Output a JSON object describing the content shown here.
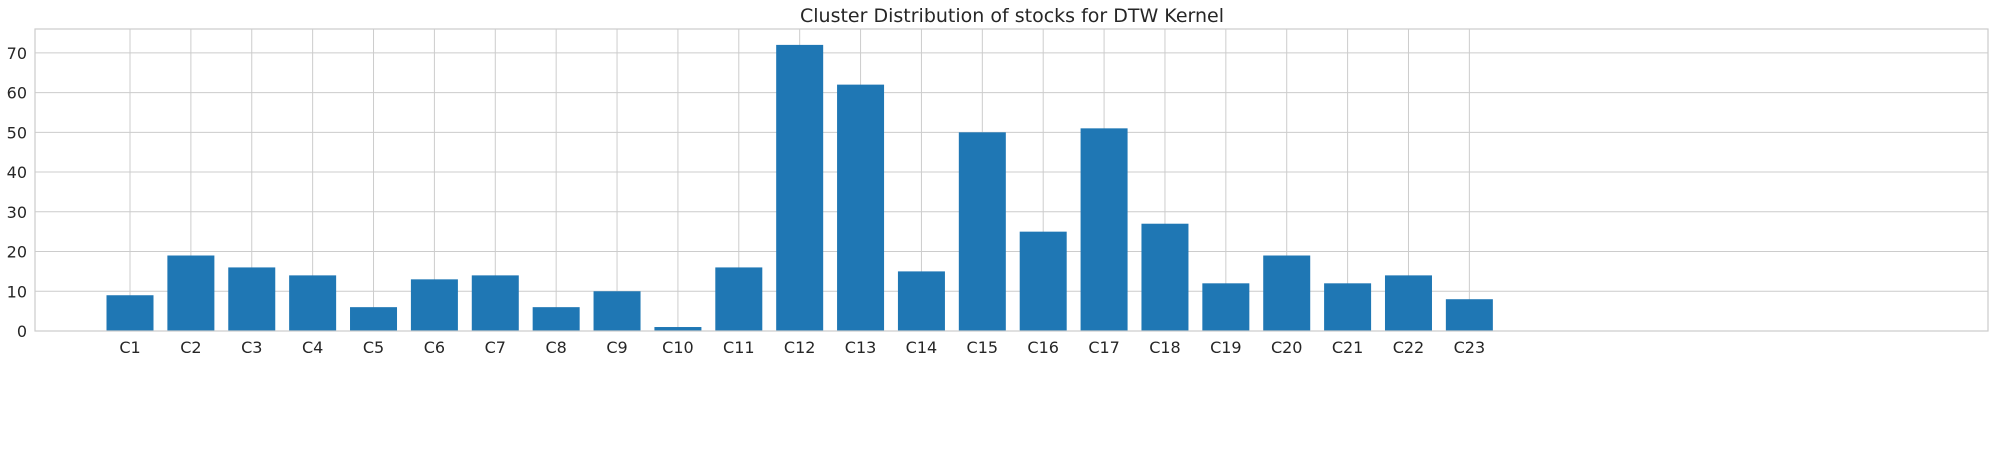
{
  "chart_data": {
    "type": "bar",
    "title": "Cluster Distribution of stocks for DTW Kernel",
    "xlabel": "",
    "ylabel": "",
    "categories": [
      "C1",
      "C2",
      "C3",
      "C4",
      "C5",
      "C6",
      "C7",
      "C8",
      "C9",
      "C10",
      "C11",
      "C12",
      "C13",
      "C14",
      "C15",
      "C16",
      "C17",
      "C18",
      "C19",
      "C20",
      "C21",
      "C22",
      "C23"
    ],
    "values": [
      9,
      19,
      16,
      14,
      6,
      13,
      14,
      6,
      10,
      1,
      16,
      72,
      62,
      15,
      50,
      25,
      51,
      27,
      12,
      19,
      12,
      14,
      8
    ],
    "ylim": [
      0,
      76
    ],
    "yticks": [
      0,
      10,
      20,
      30,
      40,
      50,
      60,
      70
    ],
    "grid": true,
    "legend": "none",
    "bar_color": "#1f77b4",
    "grid_color": "#cccccc",
    "spine_color": "#cccccc"
  }
}
